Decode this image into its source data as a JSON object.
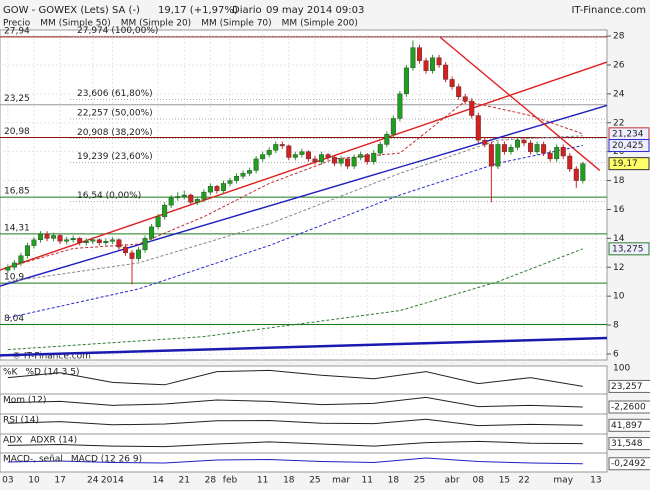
{
  "header": {
    "title": "GOW - GOWEX (Lets) SA (-)",
    "price": "19,17 (+1,97%)",
    "period": "Diario",
    "date": "09 may 2014 09:03",
    "site": "IT-Finance.com",
    "watermark": "© IT-Finance.com"
  },
  "legend": [
    "Precio",
    "MM (Simple 50)",
    "MM (Simple 20)",
    "MM (Simple 70)",
    "MM (Simple 200)"
  ],
  "chart_data": {
    "type": "candlestick",
    "xlim": [
      -1.2,
      91.7
    ],
    "ylim": [
      5.72,
      28.42
    ],
    "grid": true,
    "yticks": [
      6,
      8,
      10,
      12,
      14,
      16,
      18,
      20,
      22,
      24,
      26,
      28
    ],
    "xticks": [
      {
        "value": 0,
        "label": "03"
      },
      {
        "value": 4,
        "label": "10"
      },
      {
        "value": 8,
        "label": "17"
      },
      {
        "value": 13,
        "label": "24"
      },
      {
        "value": 16,
        "label": "2014"
      },
      {
        "value": 23,
        "label": "14"
      },
      {
        "value": 27,
        "label": "21"
      },
      {
        "value": 31,
        "label": "28"
      },
      {
        "value": 34,
        "label": "feb"
      },
      {
        "value": 39,
        "label": "11"
      },
      {
        "value": 43,
        "label": "18"
      },
      {
        "value": 47,
        "label": "25"
      },
      {
        "value": 51,
        "label": "mar"
      },
      {
        "value": 55,
        "label": "11"
      },
      {
        "value": 59,
        "label": "18"
      },
      {
        "value": 63,
        "label": "25"
      },
      {
        "value": 68,
        "label": "abr"
      },
      {
        "value": 72,
        "label": "08"
      },
      {
        "value": 76,
        "label": "15"
      },
      {
        "value": 79,
        "label": "22"
      },
      {
        "value": 85,
        "label": "may"
      },
      {
        "value": 90,
        "label": "13"
      }
    ],
    "up_color": "#1f9e1f",
    "down_color": "#d42020",
    "candles": [
      [
        11.8,
        12.2,
        11.6,
        12.0
      ],
      [
        12.0,
        12.5,
        11.8,
        12.3
      ],
      [
        12.3,
        13.0,
        12.1,
        12.8
      ],
      [
        12.8,
        13.7,
        12.6,
        13.5
      ],
      [
        13.5,
        14.1,
        13.3,
        13.9
      ],
      [
        13.9,
        14.5,
        13.7,
        14.3
      ],
      [
        14.3,
        14.5,
        13.8,
        14.0
      ],
      [
        14.0,
        14.4,
        13.8,
        14.2
      ],
      [
        14.2,
        14.3,
        13.6,
        13.8
      ],
      [
        13.8,
        14.1,
        13.6,
        13.9
      ],
      [
        13.9,
        14.2,
        13.7,
        14.0
      ],
      [
        14.0,
        14.1,
        13.5,
        13.7
      ],
      [
        13.7,
        14.0,
        13.5,
        13.8
      ],
      [
        13.8,
        14.1,
        13.6,
        13.9
      ],
      [
        13.9,
        14.0,
        13.5,
        13.7
      ],
      [
        13.7,
        14.0,
        13.5,
        13.8
      ],
      [
        13.8,
        14.1,
        13.6,
        13.9
      ],
      [
        13.9,
        14.0,
        13.2,
        13.4
      ],
      [
        13.4,
        13.6,
        12.8,
        13.0
      ],
      [
        13.0,
        13.2,
        10.8,
        12.6
      ],
      [
        12.6,
        13.4,
        12.4,
        13.2
      ],
      [
        13.2,
        14.2,
        13.0,
        14.0
      ],
      [
        14.0,
        15.0,
        13.8,
        14.8
      ],
      [
        14.8,
        15.7,
        14.6,
        15.5
      ],
      [
        15.5,
        16.5,
        15.3,
        16.3
      ],
      [
        16.3,
        17.0,
        16.1,
        16.8
      ],
      [
        16.8,
        17.2,
        16.6,
        16.9
      ],
      [
        16.9,
        17.3,
        16.7,
        17.0
      ],
      [
        17.0,
        17.1,
        16.3,
        16.5
      ],
      [
        16.5,
        16.9,
        16.3,
        16.7
      ],
      [
        16.7,
        17.4,
        16.5,
        17.2
      ],
      [
        17.2,
        17.8,
        17.0,
        17.6
      ],
      [
        17.6,
        17.7,
        17.1,
        17.3
      ],
      [
        17.3,
        18.0,
        17.1,
        17.8
      ],
      [
        17.8,
        18.2,
        17.6,
        18.0
      ],
      [
        18.0,
        18.5,
        17.8,
        18.3
      ],
      [
        18.3,
        18.7,
        18.1,
        18.5
      ],
      [
        18.5,
        18.9,
        18.3,
        18.7
      ],
      [
        18.7,
        19.7,
        18.5,
        19.5
      ],
      [
        19.5,
        20.0,
        19.3,
        19.8
      ],
      [
        19.8,
        20.3,
        19.6,
        20.1
      ],
      [
        20.1,
        20.7,
        19.9,
        20.5
      ],
      [
        20.5,
        20.7,
        20.2,
        20.4
      ],
      [
        20.4,
        20.5,
        19.4,
        19.6
      ],
      [
        19.6,
        20.0,
        19.4,
        19.8
      ],
      [
        19.8,
        20.2,
        19.6,
        20.0
      ],
      [
        20.0,
        20.1,
        19.3,
        19.5
      ],
      [
        19.5,
        19.7,
        19.1,
        19.3
      ],
      [
        19.3,
        20.0,
        19.1,
        19.8
      ],
      [
        19.8,
        19.9,
        19.4,
        19.6
      ],
      [
        19.6,
        19.7,
        19.0,
        19.2
      ],
      [
        19.2,
        19.7,
        19.0,
        19.5
      ],
      [
        19.5,
        19.6,
        18.8,
        19.0
      ],
      [
        19.0,
        19.8,
        18.8,
        19.6
      ],
      [
        19.6,
        20.0,
        19.4,
        19.8
      ],
      [
        19.8,
        19.9,
        19.1,
        19.3
      ],
      [
        19.3,
        20.1,
        19.1,
        19.9
      ],
      [
        19.9,
        20.7,
        19.7,
        20.5
      ],
      [
        20.5,
        21.4,
        20.3,
        21.2
      ],
      [
        21.2,
        22.5,
        21.0,
        22.3
      ],
      [
        22.3,
        24.2,
        22.1,
        24.0
      ],
      [
        24.0,
        26.0,
        23.8,
        25.8
      ],
      [
        25.8,
        27.7,
        25.6,
        27.2
      ],
      [
        27.2,
        27.4,
        26.1,
        26.3
      ],
      [
        26.3,
        26.5,
        25.4,
        25.6
      ],
      [
        25.6,
        26.7,
        25.4,
        26.5
      ],
      [
        26.5,
        26.7,
        25.8,
        26.0
      ],
      [
        26.0,
        26.2,
        24.8,
        25.0
      ],
      [
        25.0,
        25.2,
        24.3,
        24.5
      ],
      [
        24.5,
        24.7,
        23.6,
        23.8
      ],
      [
        23.8,
        24.0,
        23.3,
        23.5
      ],
      [
        23.5,
        23.7,
        22.3,
        22.5
      ],
      [
        22.5,
        22.7,
        20.6,
        20.8
      ],
      [
        20.8,
        21.0,
        20.3,
        20.5
      ],
      [
        20.5,
        20.7,
        16.5,
        19.0
      ],
      [
        19.0,
        20.7,
        18.8,
        20.5
      ],
      [
        20.5,
        20.7,
        19.8,
        20.0
      ],
      [
        20.0,
        20.5,
        19.8,
        20.3
      ],
      [
        20.3,
        21.0,
        20.1,
        20.8
      ],
      [
        20.8,
        21.0,
        20.4,
        20.6
      ],
      [
        20.6,
        20.8,
        19.8,
        20.0
      ],
      [
        20.0,
        20.7,
        19.8,
        20.5
      ],
      [
        20.5,
        20.7,
        19.7,
        19.9
      ],
      [
        19.9,
        20.1,
        19.3,
        19.5
      ],
      [
        19.5,
        20.5,
        19.3,
        20.3
      ],
      [
        20.3,
        20.5,
        19.5,
        19.7
      ],
      [
        19.7,
        19.9,
        18.6,
        18.8
      ],
      [
        18.8,
        19.0,
        17.5,
        18.0
      ],
      [
        18.0,
        19.3,
        17.8,
        19.17
      ]
    ],
    "last_label": "19,17",
    "series": [
      {
        "name": "MM (Simple 20)",
        "color": "#c03030",
        "x": [
          0,
          10,
          20,
          30,
          40,
          50,
          60,
          70,
          80,
          88
        ],
        "values": [
          12.0,
          13.3,
          13.6,
          15.5,
          17.8,
          19.5,
          19.9,
          23.5,
          22.5,
          21.234
        ],
        "last_label": "21,234"
      },
      {
        "name": "MM (Simple 50)",
        "color": "#888888",
        "x": [
          0,
          20,
          40,
          60,
          75,
          88
        ],
        "values": [
          11.0,
          12.3,
          15.0,
          18.5,
          20.8,
          21.1
        ]
      },
      {
        "name": "MM (Simple 70)",
        "color": "#2a2ad0",
        "x": [
          0,
          20,
          40,
          60,
          75,
          88
        ],
        "values": [
          8.5,
          10.5,
          13.5,
          17.0,
          19.2,
          20.425
        ],
        "last_label": "20,425"
      },
      {
        "name": "MM (Simple 200)",
        "color": "#2e7d2e",
        "x": [
          0,
          30,
          60,
          75,
          88
        ],
        "values": [
          6.3,
          7.2,
          9.0,
          11.0,
          13.275
        ],
        "last_label": "13,275"
      }
    ],
    "levels": [
      {
        "value": 27.94,
        "label": "27,94",
        "color": "#8b1010"
      },
      {
        "value": 23.25,
        "label": "23,25",
        "color": "#999999"
      },
      {
        "value": 20.98,
        "label": "20,98",
        "color": "#8b1010"
      },
      {
        "value": 16.85,
        "label": "16,85",
        "color": "#1a7a1a"
      },
      {
        "value": 14.31,
        "label": "14,31",
        "color": "#1a7a1a"
      },
      {
        "value": 10.9,
        "label": "10,9",
        "color": "#1a7a1a"
      },
      {
        "value": 8.04,
        "label": "8,04",
        "color": "#1a7a1a"
      }
    ],
    "fibonacci": [
      {
        "value": 27.974,
        "label": "27,974 (100,00%)"
      },
      {
        "value": 23.606,
        "label": "23,606 (61,80%)"
      },
      {
        "value": 22.257,
        "label": "22,257 (50,00%)"
      },
      {
        "value": 20.908,
        "label": "20,908 (38,20%)"
      },
      {
        "value": 19.239,
        "label": "19,239 (23,60%)"
      },
      {
        "value": 16.54,
        "label": "16,54 (0,00%)"
      }
    ],
    "trendlines": [
      {
        "x": [
          -1.2,
          91.7
        ],
        "values": [
          11.8,
          26.2
        ],
        "color": "#e02020"
      },
      {
        "x": [
          -1.2,
          91.7
        ],
        "values": [
          10.7,
          23.2
        ],
        "color": "#2020c0"
      },
      {
        "x": [
          66.2,
          90.6
        ],
        "values": [
          27.9,
          18.7
        ],
        "color": "#e02020"
      },
      {
        "x": [
          -1.2,
          91.7
        ],
        "values": [
          5.9,
          7.1
        ],
        "color": "#1a1ab0"
      }
    ],
    "panels": [
      {
        "labels": [
          "%K",
          "%D (14 3 5)"
        ],
        "ylim": [
          0,
          100
        ],
        "x": [
          0,
          8,
          16,
          24,
          32,
          40,
          48,
          56,
          64,
          72,
          80,
          88
        ],
        "values": [
          60,
          80,
          40,
          30,
          85,
          90,
          70,
          55,
          85,
          35,
          60,
          23.257
        ],
        "last": {
          "value": 23.257,
          "label": "23,257"
        },
        "top": {
          "value": 100,
          "label": "100"
        },
        "color": "#222"
      },
      {
        "labels": [
          "Mom (12)"
        ],
        "ylim": [
          -6,
          6
        ],
        "x": [
          0,
          8,
          16,
          24,
          32,
          40,
          48,
          56,
          64,
          72,
          80,
          88
        ],
        "values": [
          1,
          2,
          -1,
          0,
          3,
          2,
          -0.5,
          0.5,
          5,
          -2,
          -1,
          -2.26
        ],
        "last": {
          "value": -2.26,
          "label": "-2,2600"
        },
        "color": "#222"
      },
      {
        "labels": [
          "RSI (14)"
        ],
        "ylim": [
          0,
          100
        ],
        "x": [
          0,
          8,
          16,
          24,
          32,
          40,
          48,
          56,
          64,
          72,
          80,
          88
        ],
        "values": [
          55,
          65,
          45,
          50,
          70,
          72,
          55,
          52,
          80,
          40,
          48,
          41.897
        ],
        "last": {
          "value": 41.897,
          "label": "41,897"
        },
        "color": "#222"
      },
      {
        "labels": [
          "ADX",
          "ADXR (14)"
        ],
        "ylim": [
          0,
          60
        ],
        "x": [
          0,
          8,
          16,
          24,
          32,
          40,
          48,
          56,
          64,
          72,
          80,
          88
        ],
        "values": [
          25,
          28,
          22,
          20,
          30,
          38,
          30,
          22,
          35,
          40,
          33,
          31.548
        ],
        "last": {
          "value": 31.548,
          "label": "31,548"
        },
        "color": "#222"
      },
      {
        "labels": [
          "MACD-, señal",
          "MACD (12 26 9)"
        ],
        "ylim": [
          -1.5,
          1.5
        ],
        "x": [
          0,
          8,
          16,
          24,
          32,
          40,
          48,
          56,
          64,
          72,
          80,
          88
        ],
        "values": [
          0.1,
          0.3,
          0,
          -0.1,
          0.5,
          0.6,
          0.2,
          0,
          0.9,
          0.2,
          -0.1,
          -0.2492
        ],
        "last": {
          "value": -0.2492,
          "label": "-0,2492"
        },
        "color": "#2020c0"
      }
    ]
  }
}
